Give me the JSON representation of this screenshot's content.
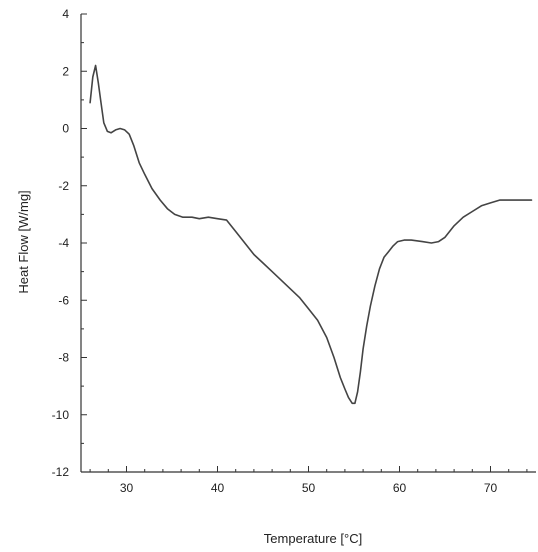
{
  "chart_data": {
    "type": "line",
    "title": "",
    "xlabel": "Temperature [°C]",
    "ylabel": "Heat Flow [W/mg]",
    "xlim": [
      25,
      75
    ],
    "ylim": [
      -12,
      4
    ],
    "x_ticks": [
      30,
      40,
      50,
      60,
      70
    ],
    "y_ticks": [
      4,
      2,
      0,
      -2,
      -4,
      -6,
      -8,
      -10,
      -12
    ],
    "grid": false,
    "legend": "none",
    "line_color": "#444444",
    "series": [
      {
        "x": [
          26.0,
          26.3,
          26.6,
          26.9,
          27.2,
          27.5,
          27.9,
          28.3,
          28.8,
          29.3,
          29.8,
          30.3,
          30.8,
          31.4,
          32.0,
          32.8,
          33.7,
          34.5,
          35.3,
          36.2,
          37.2,
          38.0,
          39.0,
          40.0,
          41.0,
          42.0,
          43.0,
          44.0,
          45.0,
          46.0,
          47.0,
          48.0,
          49.0,
          50.0,
          51.0,
          52.0,
          52.8,
          53.5,
          54.0,
          54.4,
          54.8,
          55.1,
          55.4,
          55.7,
          56.0,
          56.4,
          56.8,
          57.3,
          57.8,
          58.3,
          58.8,
          59.3,
          59.8,
          60.5,
          61.3,
          62.5,
          63.5,
          64.3,
          65.0,
          66.0,
          67.0,
          68.0,
          69.0,
          70.0,
          71.0,
          72.0,
          73.0,
          74.5
        ],
        "y": [
          0.9,
          1.8,
          2.2,
          1.6,
          0.9,
          0.2,
          -0.1,
          -0.15,
          -0.05,
          0.0,
          -0.05,
          -0.2,
          -0.6,
          -1.2,
          -1.6,
          -2.1,
          -2.5,
          -2.8,
          -3.0,
          -3.1,
          -3.1,
          -3.15,
          -3.1,
          -3.15,
          -3.2,
          -3.6,
          -4.0,
          -4.4,
          -4.7,
          -5.0,
          -5.3,
          -5.6,
          -5.9,
          -6.3,
          -6.7,
          -7.3,
          -8.0,
          -8.7,
          -9.1,
          -9.4,
          -9.6,
          -9.6,
          -9.2,
          -8.5,
          -7.7,
          -6.9,
          -6.2,
          -5.5,
          -4.9,
          -4.5,
          -4.3,
          -4.1,
          -3.95,
          -3.9,
          -3.9,
          -3.95,
          -4.0,
          -3.95,
          -3.8,
          -3.4,
          -3.1,
          -2.9,
          -2.7,
          -2.6,
          -2.5,
          -2.5,
          -2.5,
          -2.5
        ]
      }
    ]
  }
}
